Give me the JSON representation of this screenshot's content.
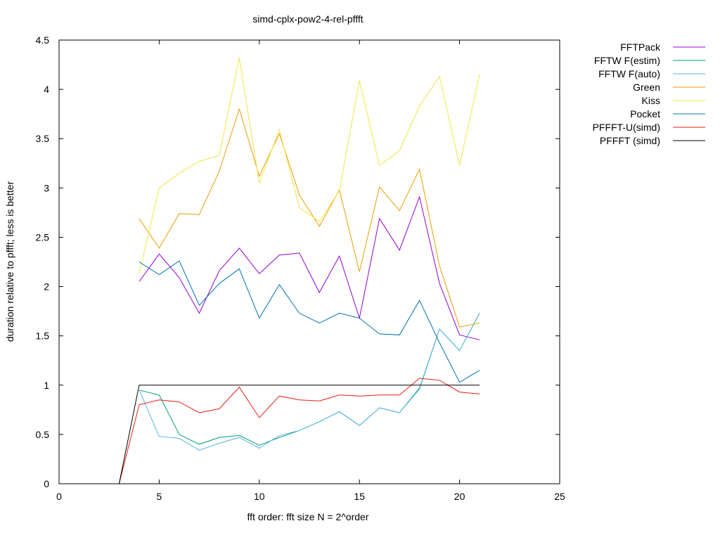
{
  "chart_data": {
    "type": "line",
    "title": "simd-cplx-pow2-4-rel-pffft",
    "xlabel": "fft order: fft size N = 2^order",
    "ylabel": "duration relative to pffft; less is better",
    "xlim": [
      0,
      25
    ],
    "ylim": [
      0,
      4.5
    ],
    "xticks": [
      0,
      5,
      10,
      15,
      20,
      25
    ],
    "xtick_labels": [
      "0",
      "5",
      "10",
      "15",
      "20",
      "25"
    ],
    "yticks": [
      0,
      0.5,
      1,
      1.5,
      2,
      2.5,
      3,
      3.5,
      4,
      4.5
    ],
    "ytick_labels": [
      "0",
      "0.5",
      "1",
      "1.5",
      "2",
      "2.5",
      "3",
      "3.5",
      "4",
      "4.5"
    ],
    "grid": false,
    "legend_position": "outside-top-right",
    "series": [
      {
        "name": "FFTPack",
        "color": "#9400d3",
        "x": [
          4,
          5,
          6,
          7,
          8,
          9,
          10,
          11,
          12,
          13,
          14,
          15,
          16,
          17,
          18,
          19,
          20,
          21
        ],
        "y": [
          2.05,
          2.33,
          2.09,
          1.73,
          2.16,
          2.39,
          2.13,
          2.32,
          2.34,
          1.94,
          2.31,
          1.68,
          2.69,
          2.37,
          2.91,
          2.03,
          1.51,
          1.46
        ]
      },
      {
        "name": "FFTW F(estim)",
        "color": "#009e73",
        "x": [
          4,
          5,
          6,
          7,
          8,
          9,
          10,
          11,
          12,
          13,
          14,
          15,
          16,
          17,
          18,
          19,
          20,
          21
        ],
        "y": [
          0.95,
          0.9,
          0.5,
          0.4,
          0.47,
          0.49,
          0.39,
          0.47,
          0.54,
          0.63,
          0.73,
          0.59,
          0.77,
          0.72,
          0.97,
          1.57,
          1.35,
          1.73
        ]
      },
      {
        "name": "FFTW F(auto)",
        "color": "#56b4e9",
        "x": [
          4,
          5,
          6,
          7,
          8,
          9,
          10,
          11,
          12,
          13,
          14,
          15,
          16,
          17,
          18,
          19,
          20,
          21
        ],
        "y": [
          0.95,
          0.48,
          0.46,
          0.34,
          0.41,
          0.47,
          0.36,
          0.49,
          0.54,
          0.63,
          0.73,
          0.59,
          0.77,
          0.72,
          0.96,
          1.57,
          1.35,
          1.73
        ]
      },
      {
        "name": "Green",
        "color": "#e69f00",
        "x": [
          4,
          5,
          6,
          7,
          8,
          9,
          10,
          11,
          12,
          13,
          14,
          15,
          16,
          17,
          18,
          19,
          20,
          21
        ],
        "y": [
          2.69,
          2.39,
          2.74,
          2.73,
          3.17,
          3.8,
          3.12,
          3.55,
          2.93,
          2.61,
          2.98,
          2.15,
          3.01,
          2.77,
          3.19,
          2.21,
          1.59,
          1.63
        ]
      },
      {
        "name": "Kiss",
        "color": "#f0e442",
        "x": [
          4,
          5,
          6,
          7,
          8,
          9,
          10,
          11,
          12,
          13,
          14,
          15,
          16,
          17,
          18,
          19,
          20,
          21
        ],
        "y": [
          2.13,
          3.0,
          3.15,
          3.27,
          3.33,
          4.32,
          3.05,
          3.59,
          2.8,
          2.66,
          2.97,
          4.09,
          3.23,
          3.38,
          3.83,
          4.13,
          3.23,
          4.15
        ]
      },
      {
        "name": "Pocket",
        "color": "#0072b2",
        "x": [
          4,
          5,
          6,
          7,
          8,
          9,
          10,
          11,
          12,
          13,
          14,
          15,
          16,
          17,
          18,
          19,
          20,
          21
        ],
        "y": [
          2.25,
          2.12,
          2.26,
          1.81,
          2.03,
          2.18,
          1.68,
          2.02,
          1.73,
          1.63,
          1.73,
          1.68,
          1.52,
          1.51,
          1.86,
          1.43,
          1.03,
          1.15
        ]
      },
      {
        "name": "PFFFT-U(simd)",
        "color": "#e51e10",
        "x": [
          3,
          4,
          5,
          6,
          7,
          8,
          9,
          10,
          11,
          12,
          13,
          14,
          15,
          16,
          17,
          18,
          19,
          20,
          21
        ],
        "y": [
          0,
          0.8,
          0.85,
          0.83,
          0.72,
          0.76,
          0.98,
          0.67,
          0.89,
          0.85,
          0.84,
          0.9,
          0.89,
          0.9,
          0.9,
          1.07,
          1.05,
          0.93,
          0.91
        ]
      },
      {
        "name": "PFFFT (simd)",
        "color": "#000000",
        "x": [
          3,
          4,
          5,
          6,
          7,
          8,
          9,
          10,
          11,
          12,
          13,
          14,
          15,
          16,
          17,
          18,
          19,
          20,
          21
        ],
        "y": [
          0,
          1,
          1,
          1,
          1,
          1,
          1,
          1,
          1,
          1,
          1,
          1,
          1,
          1,
          1,
          1,
          1,
          1,
          1
        ]
      }
    ]
  }
}
